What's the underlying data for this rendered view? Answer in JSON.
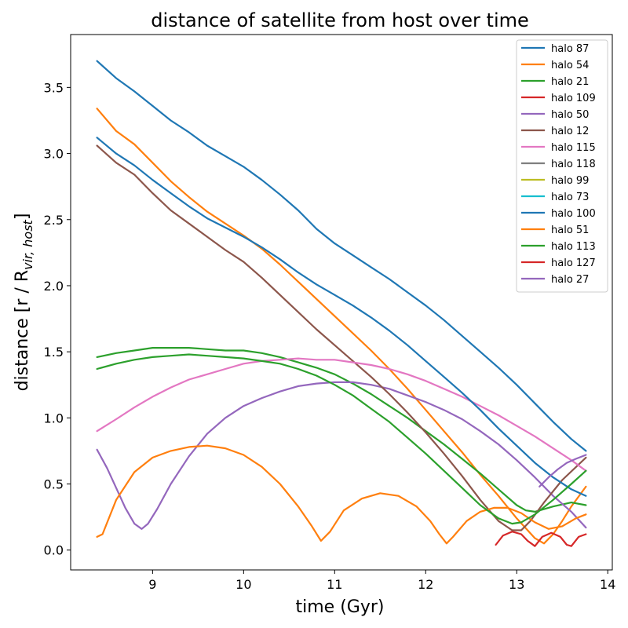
{
  "chart_data": {
    "type": "line",
    "title": "distance of satellite from host over time",
    "xlabel": "time (Gyr)",
    "ylabel_main": "distance [r / R",
    "ylabel_sub": "vir, host",
    "ylabel_end": "]",
    "xlim": [
      8.1,
      14.05
    ],
    "ylim": [
      -0.15,
      3.9
    ],
    "xticks": [
      9,
      10,
      11,
      12,
      13,
      14
    ],
    "xtick_labels": [
      "9",
      "10",
      "11",
      "12",
      "13",
      "14"
    ],
    "yticks": [
      0.0,
      0.5,
      1.0,
      1.5,
      2.0,
      2.5,
      3.0,
      3.5
    ],
    "ytick_labels": [
      "0.0",
      "0.5",
      "1.0",
      "1.5",
      "2.0",
      "2.5",
      "3.0",
      "3.5"
    ],
    "grid": false,
    "legend_position": "top-right",
    "series": [
      {
        "name": "halo 87",
        "color": "#1f77b4",
        "x": [
          8.39,
          8.6,
          8.8,
          9.0,
          9.2,
          9.4,
          9.6,
          9.8,
          10.0,
          10.2,
          10.4,
          10.6,
          10.8,
          11.0,
          11.2,
          11.4,
          11.6,
          11.8,
          12.0,
          12.2,
          12.4,
          12.6,
          12.8,
          13.0,
          13.2,
          13.4,
          13.6,
          13.76
        ],
        "y": [
          3.7,
          3.57,
          3.47,
          3.36,
          3.25,
          3.16,
          3.06,
          2.98,
          2.9,
          2.8,
          2.69,
          2.57,
          2.43,
          2.32,
          2.23,
          2.14,
          2.05,
          1.95,
          1.85,
          1.74,
          1.62,
          1.5,
          1.38,
          1.25,
          1.11,
          0.97,
          0.84,
          0.75
        ]
      },
      {
        "name": "halo 54",
        "color": "#ff7f0e",
        "x": [
          8.39,
          8.6,
          8.8,
          9.0,
          9.2,
          9.4,
          9.6,
          9.8,
          10.0,
          10.2,
          10.4,
          10.6,
          10.8,
          11.0,
          11.2,
          11.4,
          11.6,
          11.8,
          12.0,
          12.2,
          12.4,
          12.6,
          12.8,
          13.0,
          13.2,
          13.3,
          13.4,
          13.5,
          13.6,
          13.76
        ],
        "y": [
          3.34,
          3.17,
          3.07,
          2.93,
          2.79,
          2.67,
          2.56,
          2.47,
          2.38,
          2.28,
          2.16,
          2.03,
          1.9,
          1.77,
          1.64,
          1.51,
          1.37,
          1.22,
          1.06,
          0.9,
          0.74,
          0.57,
          0.41,
          0.24,
          0.09,
          0.05,
          0.12,
          0.22,
          0.33,
          0.48
        ]
      },
      {
        "name": "halo 21",
        "color": "#2ca02c",
        "x": [
          8.39,
          8.6,
          8.8,
          9.0,
          9.2,
          9.4,
          9.6,
          9.8,
          10.0,
          10.2,
          10.4,
          10.6,
          10.8,
          11.0,
          11.2,
          11.4,
          11.6,
          11.8,
          12.0,
          12.2,
          12.4,
          12.6,
          12.8,
          13.0,
          13.1,
          13.2,
          13.4,
          13.6,
          13.76
        ],
        "y": [
          1.46,
          1.49,
          1.51,
          1.53,
          1.53,
          1.53,
          1.52,
          1.51,
          1.51,
          1.49,
          1.46,
          1.42,
          1.38,
          1.33,
          1.26,
          1.18,
          1.09,
          1.0,
          0.9,
          0.8,
          0.69,
          0.58,
          0.46,
          0.34,
          0.3,
          0.29,
          0.33,
          0.36,
          0.34
        ]
      },
      {
        "name": "halo 109",
        "color": "#d62728",
        "x": [
          12.77,
          12.85,
          12.95,
          13.05,
          13.12,
          13.2,
          13.28,
          13.38,
          13.48,
          13.55,
          13.6,
          13.68,
          13.76
        ],
        "y": [
          0.04,
          0.11,
          0.14,
          0.12,
          0.07,
          0.03,
          0.1,
          0.13,
          0.1,
          0.04,
          0.03,
          0.1,
          0.12
        ]
      },
      {
        "name": "halo 50",
        "color": "#9467bd",
        "x": [
          8.39,
          8.5,
          8.6,
          8.7,
          8.8,
          8.88,
          8.95,
          9.05,
          9.2,
          9.4,
          9.6,
          9.8,
          10.0,
          10.2,
          10.4,
          10.6,
          10.8,
          11.0,
          11.2,
          11.4,
          11.6,
          11.8,
          12.0,
          12.2,
          12.4,
          12.6,
          12.8,
          13.0,
          13.2,
          13.4,
          13.6,
          13.76
        ],
        "y": [
          0.76,
          0.62,
          0.47,
          0.32,
          0.2,
          0.16,
          0.2,
          0.31,
          0.5,
          0.71,
          0.88,
          1.0,
          1.09,
          1.15,
          1.2,
          1.24,
          1.26,
          1.27,
          1.27,
          1.25,
          1.22,
          1.17,
          1.12,
          1.06,
          0.99,
          0.9,
          0.8,
          0.68,
          0.55,
          0.41,
          0.29,
          0.17
        ]
      },
      {
        "name": "halo 12",
        "color": "#8c564b",
        "x": [
          8.39,
          8.6,
          8.8,
          9.0,
          9.2,
          9.4,
          9.6,
          9.8,
          10.0,
          10.2,
          10.4,
          10.6,
          10.8,
          11.0,
          11.2,
          11.4,
          11.6,
          11.8,
          12.0,
          12.2,
          12.4,
          12.6,
          12.8,
          12.95,
          13.05,
          13.15,
          13.3,
          13.5,
          13.76
        ],
        "y": [
          3.06,
          2.93,
          2.84,
          2.7,
          2.57,
          2.47,
          2.37,
          2.27,
          2.18,
          2.06,
          1.93,
          1.8,
          1.67,
          1.55,
          1.43,
          1.31,
          1.18,
          1.04,
          0.89,
          0.73,
          0.56,
          0.38,
          0.22,
          0.15,
          0.15,
          0.22,
          0.36,
          0.53,
          0.7
        ]
      },
      {
        "name": "halo 115",
        "color": "#e377c2",
        "x": [
          8.39,
          8.6,
          8.8,
          9.0,
          9.2,
          9.4,
          9.6,
          9.8,
          10.0,
          10.2,
          10.4,
          10.6,
          10.8,
          11.0,
          11.2,
          11.4,
          11.6,
          11.8,
          12.0,
          12.2,
          12.4,
          12.6,
          12.8,
          13.0,
          13.2,
          13.4,
          13.6,
          13.76
        ],
        "y": [
          0.9,
          0.99,
          1.08,
          1.16,
          1.23,
          1.29,
          1.33,
          1.37,
          1.41,
          1.43,
          1.44,
          1.45,
          1.44,
          1.44,
          1.42,
          1.4,
          1.37,
          1.33,
          1.28,
          1.22,
          1.16,
          1.09,
          1.02,
          0.94,
          0.86,
          0.77,
          0.68,
          0.6
        ]
      },
      {
        "name": "halo 118",
        "color": "#7f7f7f",
        "x": [],
        "y": []
      },
      {
        "name": "halo 99",
        "color": "#bcbd22",
        "x": [],
        "y": []
      },
      {
        "name": "halo 73",
        "color": "#17becf",
        "x": [],
        "y": []
      },
      {
        "name": "halo 100",
        "color": "#1f77b4",
        "x": [
          8.39,
          8.6,
          8.8,
          9.0,
          9.2,
          9.4,
          9.6,
          9.8,
          10.0,
          10.2,
          10.4,
          10.6,
          10.8,
          11.0,
          11.2,
          11.4,
          11.6,
          11.8,
          12.0,
          12.2,
          12.4,
          12.6,
          12.8,
          13.0,
          13.2,
          13.4,
          13.6,
          13.76
        ],
        "y": [
          3.12,
          3.0,
          2.91,
          2.8,
          2.7,
          2.6,
          2.51,
          2.44,
          2.37,
          2.29,
          2.2,
          2.1,
          2.01,
          1.93,
          1.85,
          1.76,
          1.66,
          1.55,
          1.43,
          1.31,
          1.19,
          1.06,
          0.92,
          0.79,
          0.66,
          0.55,
          0.46,
          0.41
        ]
      },
      {
        "name": "halo 51",
        "color": "#ff7f0e",
        "x": [
          8.39,
          8.45,
          8.6,
          8.8,
          9.0,
          9.2,
          9.4,
          9.6,
          9.8,
          10.0,
          10.2,
          10.4,
          10.6,
          10.75,
          10.85,
          10.95,
          11.1,
          11.3,
          11.5,
          11.7,
          11.9,
          12.05,
          12.15,
          12.23,
          12.3,
          12.45,
          12.6,
          12.75,
          12.9,
          13.05,
          13.2,
          13.35,
          13.5,
          13.65,
          13.76
        ],
        "y": [
          0.1,
          0.12,
          0.38,
          0.59,
          0.7,
          0.75,
          0.78,
          0.79,
          0.77,
          0.72,
          0.63,
          0.5,
          0.33,
          0.18,
          0.07,
          0.14,
          0.3,
          0.39,
          0.43,
          0.41,
          0.33,
          0.22,
          0.12,
          0.05,
          0.1,
          0.22,
          0.29,
          0.32,
          0.32,
          0.28,
          0.21,
          0.16,
          0.18,
          0.24,
          0.27
        ]
      },
      {
        "name": "halo 113",
        "color": "#2ca02c",
        "x": [
          8.39,
          8.6,
          8.8,
          9.0,
          9.2,
          9.4,
          9.6,
          9.8,
          10.0,
          10.2,
          10.4,
          10.6,
          10.8,
          11.0,
          11.2,
          11.4,
          11.6,
          11.8,
          12.0,
          12.2,
          12.4,
          12.6,
          12.8,
          12.95,
          13.05,
          13.2,
          13.4,
          13.6,
          13.76
        ],
        "y": [
          1.37,
          1.41,
          1.44,
          1.46,
          1.47,
          1.48,
          1.47,
          1.46,
          1.45,
          1.43,
          1.41,
          1.37,
          1.32,
          1.25,
          1.17,
          1.07,
          0.97,
          0.85,
          0.73,
          0.6,
          0.47,
          0.34,
          0.24,
          0.2,
          0.21,
          0.27,
          0.38,
          0.5,
          0.6
        ]
      },
      {
        "name": "halo 127",
        "color": "#d62728",
        "x": [],
        "y": []
      },
      {
        "name": "halo 27",
        "color": "#9467bd",
        "x": [
          13.25,
          13.35,
          13.45,
          13.55,
          13.65,
          13.76
        ],
        "y": [
          0.48,
          0.55,
          0.61,
          0.66,
          0.69,
          0.72
        ]
      }
    ]
  }
}
